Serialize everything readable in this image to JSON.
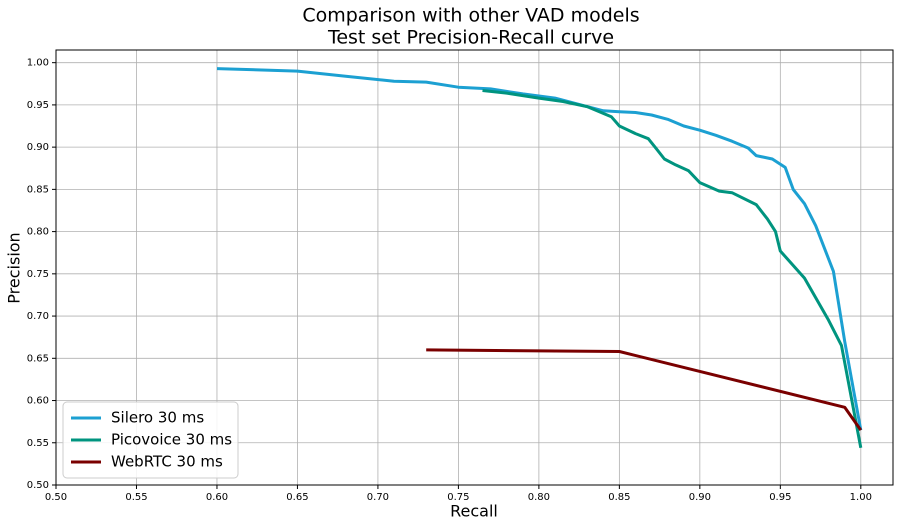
{
  "chart_data": {
    "type": "line",
    "title": "Comparison with other VAD models",
    "subtitle": "Test set Precision-Recall curve",
    "x_label": "Recall",
    "y_label": "Precision",
    "xlim": [
      0.5,
      1.02
    ],
    "ylim": [
      0.5,
      1.015
    ],
    "xticks": [
      {
        "value": 0.5,
        "label": "0.50"
      },
      {
        "value": 0.55,
        "label": "0.55"
      },
      {
        "value": 0.6,
        "label": "0.60"
      },
      {
        "value": 0.65,
        "label": "0.65"
      },
      {
        "value": 0.7,
        "label": "0.70"
      },
      {
        "value": 0.75,
        "label": "0.75"
      },
      {
        "value": 0.8,
        "label": "0.80"
      },
      {
        "value": 0.85,
        "label": "0.85"
      },
      {
        "value": 0.9,
        "label": "0.90"
      },
      {
        "value": 0.95,
        "label": "0.95"
      },
      {
        "value": 1.0,
        "label": "1.00"
      }
    ],
    "yticks": [
      {
        "value": 0.5,
        "label": "0.50"
      },
      {
        "value": 0.55,
        "label": "0.55"
      },
      {
        "value": 0.6,
        "label": "0.60"
      },
      {
        "value": 0.65,
        "label": "0.65"
      },
      {
        "value": 0.7,
        "label": "0.70"
      },
      {
        "value": 0.75,
        "label": "0.75"
      },
      {
        "value": 0.8,
        "label": "0.80"
      },
      {
        "value": 0.85,
        "label": "0.85"
      },
      {
        "value": 0.9,
        "label": "0.90"
      },
      {
        "value": 0.95,
        "label": "0.95"
      },
      {
        "value": 1.0,
        "label": "1.00"
      }
    ],
    "grid": true,
    "legend": "lower-left",
    "series": [
      {
        "name": "Silero 30 ms",
        "color": "#1ca0d2",
        "x": [
          0.6,
          0.65,
          0.68,
          0.71,
          0.73,
          0.75,
          0.77,
          0.79,
          0.81,
          0.83,
          0.84,
          0.85,
          0.86,
          0.87,
          0.88,
          0.89,
          0.9,
          0.91,
          0.92,
          0.93,
          0.935,
          0.945,
          0.953,
          0.958,
          0.965,
          0.972,
          0.983,
          0.99,
          1.0
        ],
        "values": [
          0.993,
          0.99,
          0.984,
          0.978,
          0.977,
          0.971,
          0.969,
          0.963,
          0.958,
          0.948,
          0.943,
          0.942,
          0.941,
          0.938,
          0.933,
          0.925,
          0.92,
          0.914,
          0.907,
          0.899,
          0.89,
          0.886,
          0.876,
          0.85,
          0.833,
          0.807,
          0.753,
          0.67,
          0.565
        ]
      },
      {
        "name": "Picovoice 30 ms",
        "color": "#00947f",
        "x": [
          0.765,
          0.78,
          0.8,
          0.815,
          0.83,
          0.845,
          0.85,
          0.86,
          0.868,
          0.873,
          0.878,
          0.885,
          0.893,
          0.9,
          0.912,
          0.92,
          0.935,
          0.942,
          0.947,
          0.95,
          0.965,
          0.98,
          0.988,
          1.0
        ],
        "values": [
          0.967,
          0.964,
          0.958,
          0.954,
          0.948,
          0.936,
          0.925,
          0.916,
          0.91,
          0.898,
          0.886,
          0.879,
          0.872,
          0.858,
          0.848,
          0.846,
          0.832,
          0.815,
          0.8,
          0.777,
          0.745,
          0.695,
          0.665,
          0.544
        ]
      },
      {
        "name": "WebRTC 30 ms",
        "color": "#7a0000",
        "x": [
          0.73,
          0.85,
          0.99,
          1.0
        ],
        "values": [
          0.66,
          0.658,
          0.592,
          0.565
        ]
      }
    ]
  }
}
